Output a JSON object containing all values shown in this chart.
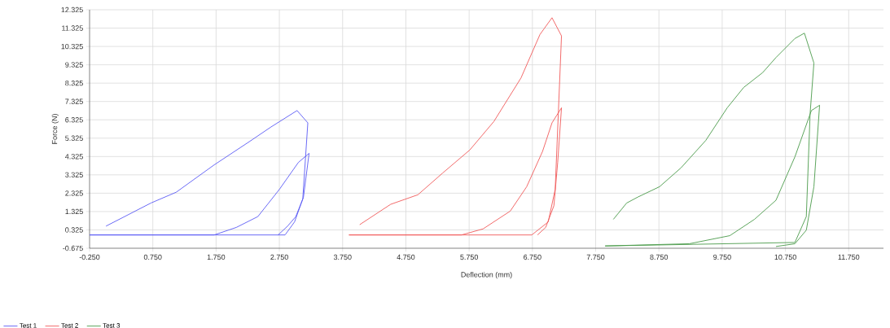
{
  "chart_data": {
    "type": "line",
    "xlabel": "Deflection (mm)",
    "ylabel": "Force (N)",
    "xlim": [
      -0.25,
      12.3
    ],
    "ylim": [
      -0.675,
      12.325
    ],
    "xticks": [
      {
        "value": -0.25,
        "label": "-0.250"
      },
      {
        "value": 0.75,
        "label": "0.750"
      },
      {
        "value": 1.75,
        "label": "1.750"
      },
      {
        "value": 2.75,
        "label": "2.750"
      },
      {
        "value": 3.75,
        "label": "3.750"
      },
      {
        "value": 4.75,
        "label": "4.750"
      },
      {
        "value": 5.75,
        "label": "5.750"
      },
      {
        "value": 6.75,
        "label": "6.750"
      },
      {
        "value": 7.75,
        "label": "7.750"
      },
      {
        "value": 8.75,
        "label": "8.750"
      },
      {
        "value": 9.75,
        "label": "9.750"
      },
      {
        "value": 10.75,
        "label": "10.750"
      },
      {
        "value": 11.75,
        "label": "11.750"
      }
    ],
    "yticks": [
      -0.675,
      0.325,
      1.325,
      2.325,
      3.325,
      4.325,
      5.325,
      6.325,
      7.325,
      8.325,
      9.325,
      10.325,
      11.325,
      12.325
    ],
    "grid": true,
    "legend": "bottom left",
    "marker": "none",
    "line_style": "solid",
    "series": [
      {
        "name": "Test 1",
        "color": "#5a5af5",
        "x": [
          0.01,
          0.72,
          1.12,
          1.72,
          2.26,
          2.62,
          3.03,
          3.2,
          3.12,
          2.99,
          2.84,
          -0.25,
          1.72,
          2.07,
          2.41,
          2.75,
          3.05,
          3.22,
          3.13,
          3.01,
          2.88,
          2.73
        ],
        "values": [
          0.53,
          1.79,
          2.38,
          3.87,
          5.1,
          5.94,
          6.83,
          6.16,
          2.01,
          0.76,
          0.05,
          0.05,
          0.05,
          0.46,
          1.05,
          2.53,
          4.0,
          4.5,
          2.09,
          1.05,
          0.53,
          0.05
        ]
      },
      {
        "name": "Test 2",
        "color": "#f05a5a",
        "x": [
          4.02,
          4.51,
          4.94,
          5.33,
          5.76,
          6.14,
          6.57,
          6.87,
          7.06,
          7.21,
          7.16,
          7.11,
          7.0,
          6.74,
          3.85,
          5.63,
          5.97,
          6.4,
          6.66,
          6.91,
          7.06,
          7.21,
          7.15,
          7.09,
          6.96,
          6.83
        ],
        "values": [
          0.61,
          1.72,
          2.24,
          3.42,
          4.68,
          6.23,
          8.61,
          10.98,
          11.89,
          10.9,
          6.68,
          2.53,
          0.76,
          0.05,
          0.05,
          0.05,
          0.38,
          1.35,
          2.68,
          4.6,
          6.16,
          6.98,
          4.01,
          1.64,
          0.46,
          0.05
        ]
      },
      {
        "name": "Test 3",
        "color": "#4a9a4a",
        "x": [
          8.03,
          8.24,
          8.42,
          8.76,
          9.1,
          9.49,
          9.83,
          10.09,
          10.39,
          10.6,
          10.9,
          11.05,
          11.2,
          11.14,
          11.08,
          10.9,
          7.9,
          9.23,
          9.87,
          10.26,
          10.6,
          10.9,
          11.16,
          11.29,
          11.2,
          11.08,
          10.9,
          10.6
        ],
        "values": [
          0.9,
          1.79,
          2.12,
          2.68,
          3.71,
          5.2,
          6.98,
          8.09,
          8.9,
          9.72,
          10.76,
          11.05,
          9.42,
          6.68,
          1.05,
          -0.36,
          -0.55,
          -0.43,
          0.01,
          0.9,
          1.94,
          4.31,
          6.83,
          7.12,
          2.68,
          0.31,
          -0.43,
          -0.58
        ]
      }
    ]
  }
}
